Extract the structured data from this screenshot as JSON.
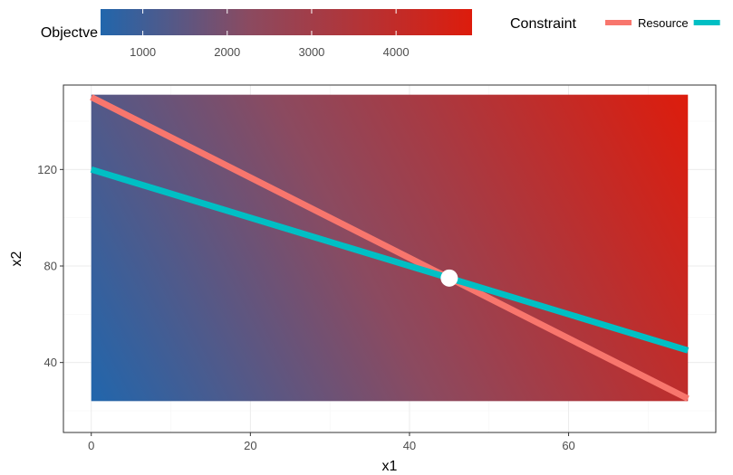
{
  "chart_data": {
    "type": "heatmap",
    "title": "",
    "xlabel": "x1",
    "ylabel": "x2",
    "xlim": [
      -3.5,
      78.5
    ],
    "ylim": [
      11,
      155
    ],
    "x_ticks": [
      0,
      20,
      40,
      60
    ],
    "y_ticks": [
      40,
      80,
      120
    ],
    "grid": true,
    "fill_region": {
      "x": [
        0,
        75
      ],
      "y": [
        24,
        151
      ]
    },
    "fill_legend": {
      "title": "Objectve",
      "breaks": [
        1000,
        2000,
        3000,
        4000
      ],
      "range": [
        500,
        4900
      ],
      "low_color": "#2166ac",
      "high_color": "#dd1c0c"
    },
    "colour_legend": {
      "title": "Constraint",
      "placement": "top"
    },
    "series": [
      {
        "name": "Resource",
        "color": "#f8766d",
        "x": [
          0,
          75
        ],
        "y": [
          150,
          25
        ]
      },
      {
        "color": "#00bfc4",
        "x": [
          0,
          75
        ],
        "y": [
          120,
          45
        ]
      }
    ],
    "optimum": {
      "x": 45,
      "y": 75,
      "color": "#ffffff"
    }
  }
}
